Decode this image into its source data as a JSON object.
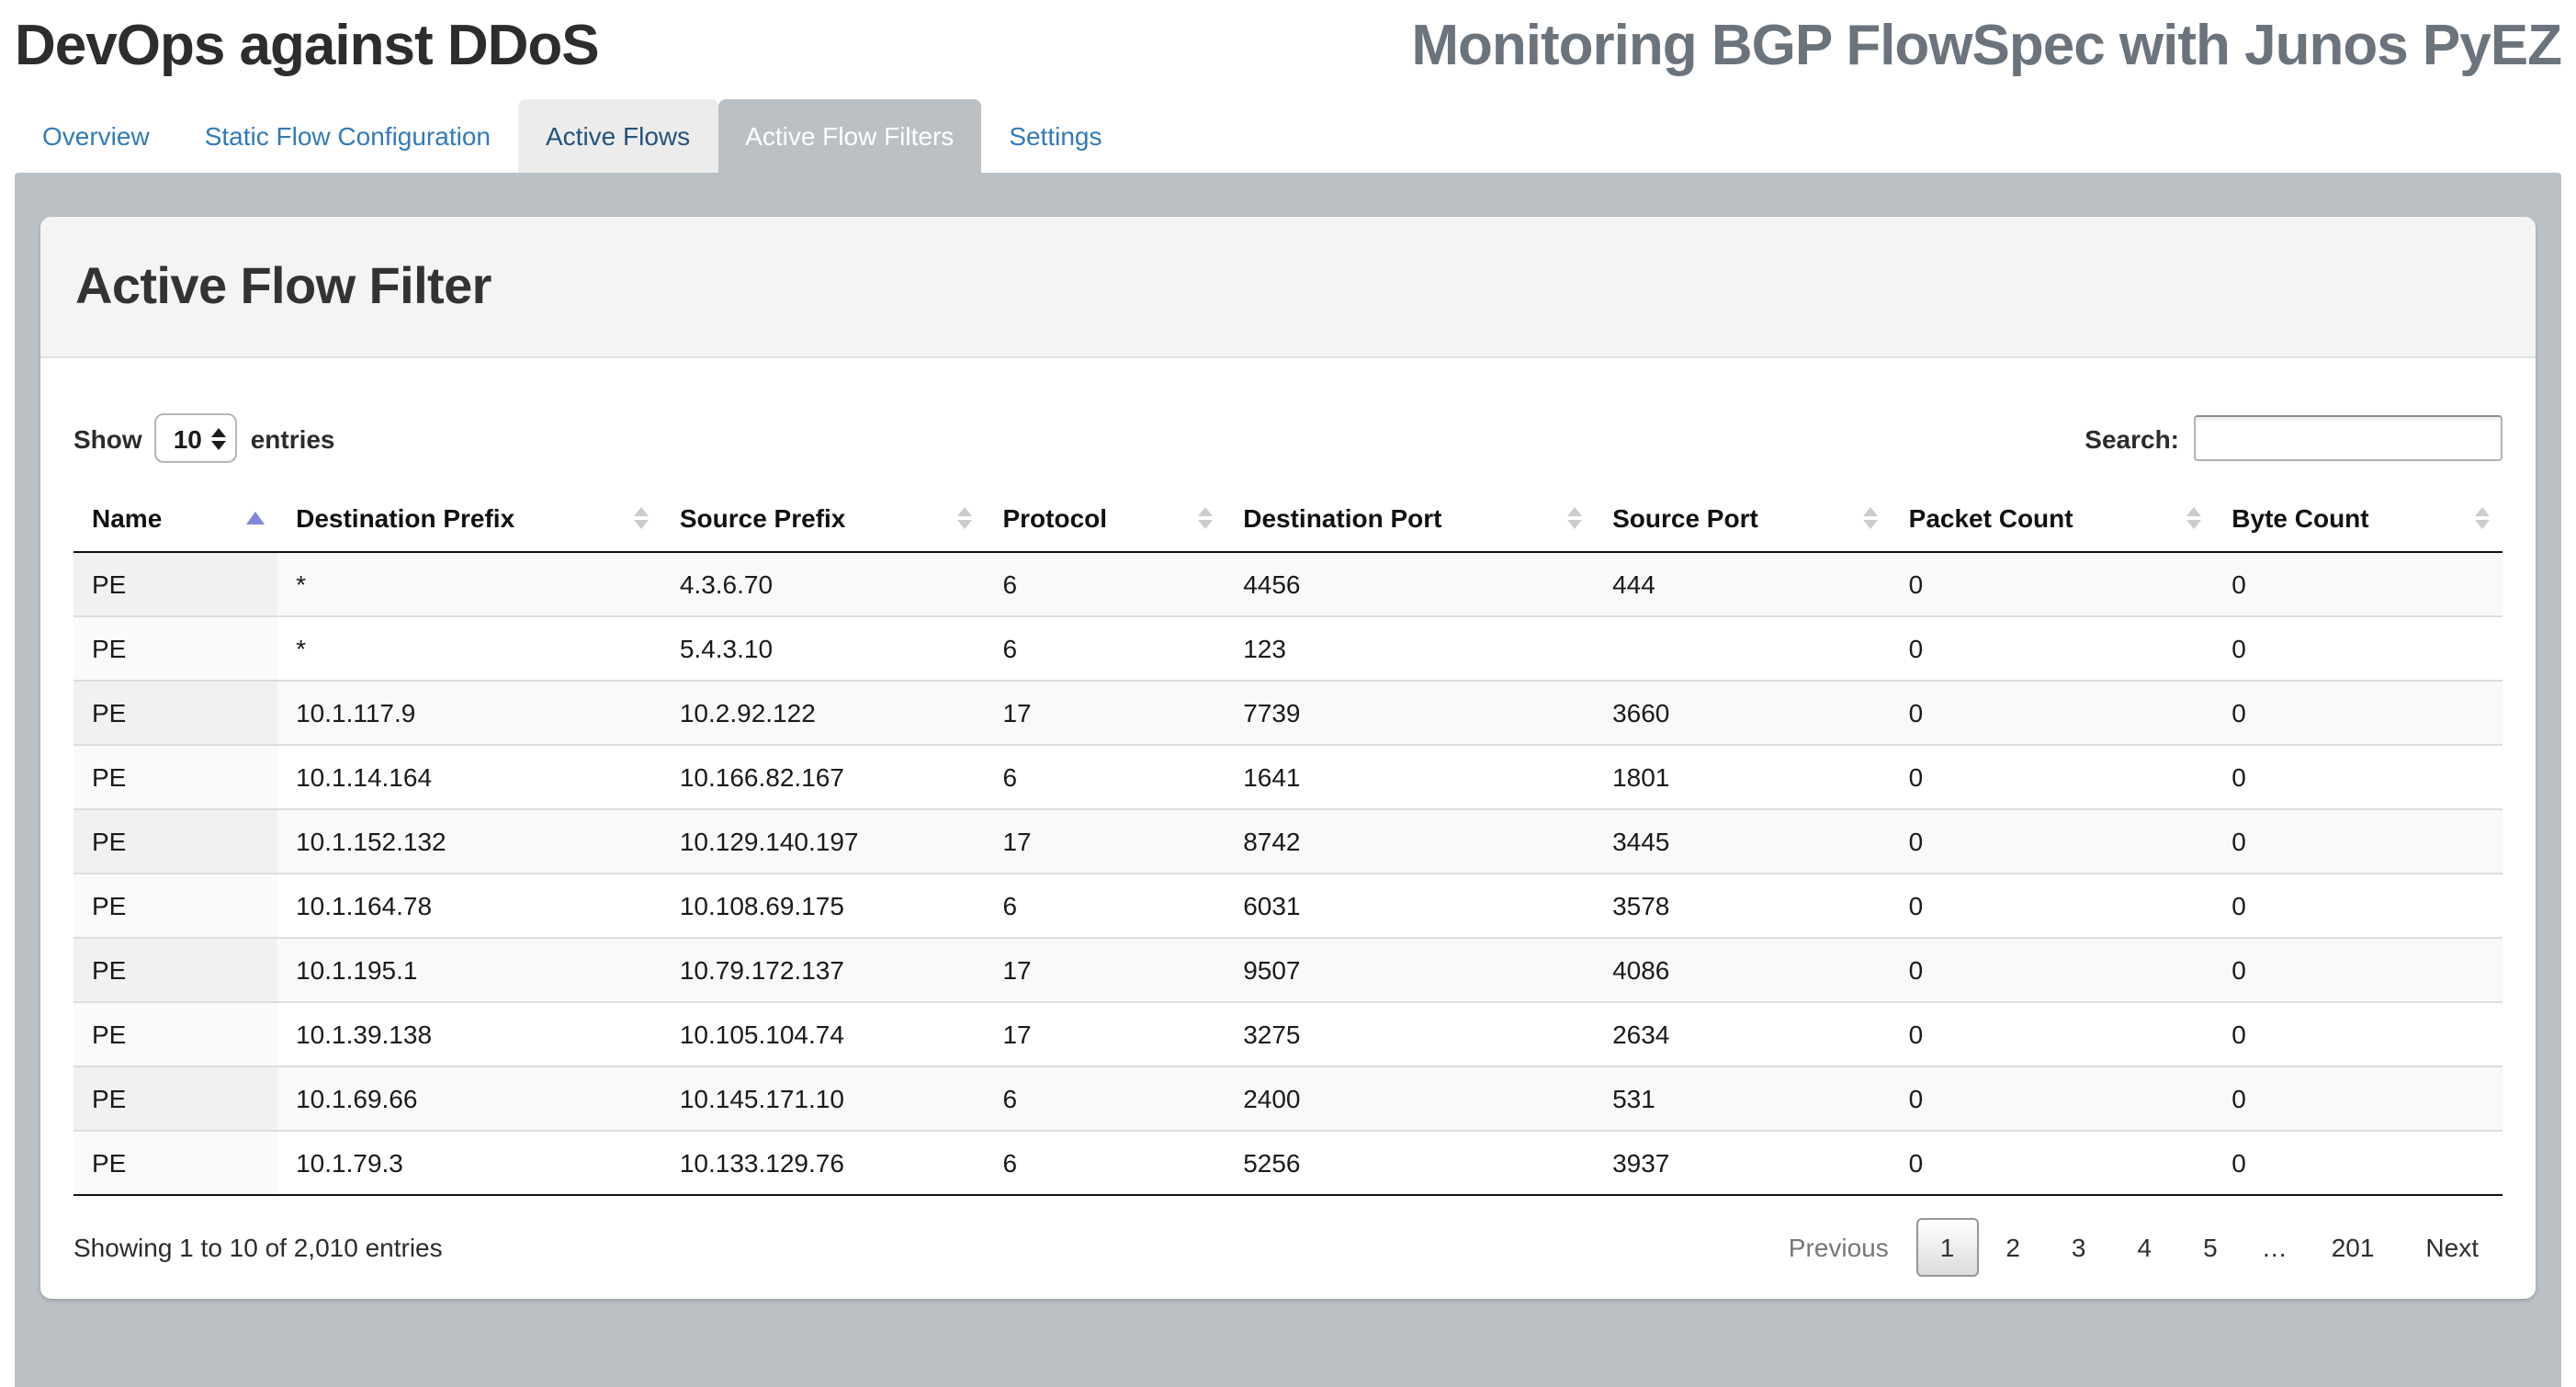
{
  "header": {
    "title_left": "DevOps against DDoS",
    "title_right": "Monitoring BGP FlowSpec with Junos PyEZ"
  },
  "tabs": [
    {
      "label": "Overview",
      "state": "link"
    },
    {
      "label": "Static Flow Configuration",
      "state": "link"
    },
    {
      "label": "Active Flows",
      "state": "hovered"
    },
    {
      "label": "Active Flow Filters",
      "state": "active"
    },
    {
      "label": "Settings",
      "state": "link"
    }
  ],
  "panel": {
    "title": "Active Flow Filter"
  },
  "controls": {
    "show_label": "Show",
    "page_length": "10",
    "entries_label": "entries",
    "search_label": "Search:",
    "search_value": ""
  },
  "table": {
    "columns": [
      {
        "label": "Name",
        "sort": "asc"
      },
      {
        "label": "Destination Prefix",
        "sort": "both"
      },
      {
        "label": "Source Prefix",
        "sort": "both"
      },
      {
        "label": "Protocol",
        "sort": "both"
      },
      {
        "label": "Destination Port",
        "sort": "both"
      },
      {
        "label": "Source Port",
        "sort": "both"
      },
      {
        "label": "Packet Count",
        "sort": "both"
      },
      {
        "label": "Byte Count",
        "sort": "both"
      }
    ],
    "rows": [
      [
        "PE",
        "*",
        "4.3.6.70",
        "6",
        "4456",
        "444",
        "0",
        "0"
      ],
      [
        "PE",
        "*",
        "5.4.3.10",
        "6",
        "123",
        "",
        "0",
        "0"
      ],
      [
        "PE",
        "10.1.117.9",
        "10.2.92.122",
        "17",
        "7739",
        "3660",
        "0",
        "0"
      ],
      [
        "PE",
        "10.1.14.164",
        "10.166.82.167",
        "6",
        "1641",
        "1801",
        "0",
        "0"
      ],
      [
        "PE",
        "10.1.152.132",
        "10.129.140.197",
        "17",
        "8742",
        "3445",
        "0",
        "0"
      ],
      [
        "PE",
        "10.1.164.78",
        "10.108.69.175",
        "6",
        "6031",
        "3578",
        "0",
        "0"
      ],
      [
        "PE",
        "10.1.195.1",
        "10.79.172.137",
        "17",
        "9507",
        "4086",
        "0",
        "0"
      ],
      [
        "PE",
        "10.1.39.138",
        "10.105.104.74",
        "17",
        "3275",
        "2634",
        "0",
        "0"
      ],
      [
        "PE",
        "10.1.69.66",
        "10.145.171.10",
        "6",
        "2400",
        "531",
        "0",
        "0"
      ],
      [
        "PE",
        "10.1.79.3",
        "10.133.129.76",
        "6",
        "5256",
        "3937",
        "0",
        "0"
      ]
    ]
  },
  "footer": {
    "info": "Showing 1 to 10 of 2,010 entries",
    "pagination": [
      {
        "label": "Previous",
        "state": "disabled"
      },
      {
        "label": "1",
        "state": "current"
      },
      {
        "label": "2",
        "state": "normal"
      },
      {
        "label": "3",
        "state": "normal"
      },
      {
        "label": "4",
        "state": "normal"
      },
      {
        "label": "5",
        "state": "normal"
      },
      {
        "label": "…",
        "state": "ellipsis"
      },
      {
        "label": "201",
        "state": "normal"
      },
      {
        "label": "Next",
        "state": "normal"
      }
    ]
  },
  "colors": {
    "link_blue": "#337ab7",
    "tab_hover_text": "#23527c",
    "tab_hover_bg": "#ececec",
    "active_tab_bg": "#bbc0c5",
    "section_gray": "#bbc0c5",
    "panel_heading_bg": "#f4f4f5",
    "sort_asc_arrow": "#8187d8",
    "header_border": "#111111",
    "row_border": "#dddddd",
    "stripe": "#f9f9f9"
  }
}
